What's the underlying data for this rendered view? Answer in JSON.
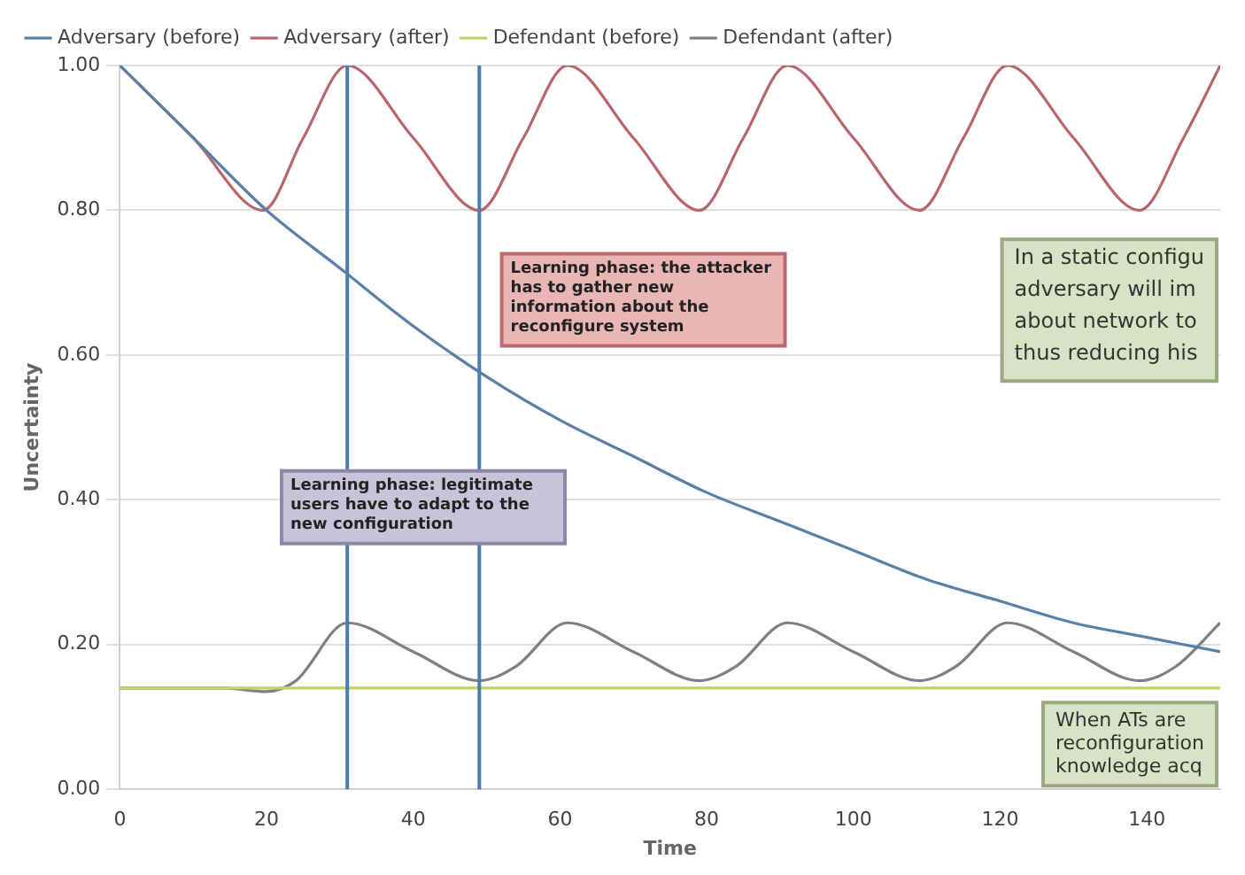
{
  "chart_data": {
    "type": "line",
    "xlabel": "Time",
    "ylabel": "Uncertainty",
    "series": [
      {
        "name": "Adversary (before)",
        "color": "#5b80a8",
        "x": [
          0,
          10,
          20,
          30,
          40,
          50,
          60,
          70,
          80,
          90,
          100,
          110,
          120,
          130,
          140,
          150
        ],
        "values": [
          1.0,
          0.9,
          0.8,
          0.72,
          0.64,
          0.57,
          0.51,
          0.46,
          0.41,
          0.37,
          0.33,
          0.29,
          0.26,
          0.23,
          0.21,
          0.19
        ]
      },
      {
        "name": "Adversary (after)",
        "color": "#b8656c",
        "x": [
          0,
          10,
          19.5,
          25,
          31,
          40,
          49,
          55,
          61,
          70,
          79,
          85,
          91,
          100,
          109,
          115,
          121,
          130,
          139,
          145,
          150
        ],
        "values": [
          1.0,
          0.9,
          0.8,
          0.9,
          1.0,
          0.9,
          0.8,
          0.9,
          1.0,
          0.9,
          0.8,
          0.9,
          1.0,
          0.9,
          0.8,
          0.9,
          1.0,
          0.9,
          0.8,
          0.9,
          1.0
        ]
      },
      {
        "name": "Defendant (before)",
        "color": "#c5d06a",
        "x": [
          0,
          150
        ],
        "values": [
          0.14,
          0.14
        ]
      },
      {
        "name": "Defendant (after)",
        "color": "#7f7f86",
        "x": [
          0,
          14,
          20,
          24,
          31,
          40,
          49,
          54,
          61,
          70,
          79,
          84,
          91,
          100,
          109,
          114,
          121,
          130,
          139,
          144,
          150
        ],
        "values": [
          0.14,
          0.14,
          0.135,
          0.15,
          0.23,
          0.19,
          0.15,
          0.17,
          0.23,
          0.19,
          0.15,
          0.17,
          0.23,
          0.19,
          0.15,
          0.17,
          0.23,
          0.19,
          0.15,
          0.17,
          0.23
        ]
      }
    ],
    "xlim": [
      0,
      150
    ],
    "xticks": [
      0,
      20,
      40,
      60,
      80,
      100,
      120,
      140
    ],
    "ylim": [
      0,
      1
    ],
    "yticks": [
      {
        "value": 0,
        "label": "0.00"
      },
      {
        "value": 0.2,
        "label": "0.20"
      },
      {
        "value": 0.4,
        "label": "0.40"
      },
      {
        "value": 0.6,
        "label": "0.60"
      },
      {
        "value": 0.8,
        "label": "0.80"
      },
      {
        "value": 1,
        "label": "1.00"
      }
    ],
    "ref_lines": [
      {
        "axis": "x",
        "value": 31,
        "color": "#4a7eab"
      },
      {
        "axis": "x",
        "value": 49,
        "color": "#4a7eab"
      }
    ],
    "annotations": [
      "Learning phase: the attacker has to gather new information about the reconfigure system",
      "Learning phase: legitimate users have to adapt to the new configuration",
      "In a static configu\nadversary will im\nabout network to\nthus reducing his",
      "When ATs are\nreconfiguration\nknowledge acq"
    ],
    "grid": "y",
    "legend": "top",
    "marker": "none",
    "line_style": "solid"
  }
}
